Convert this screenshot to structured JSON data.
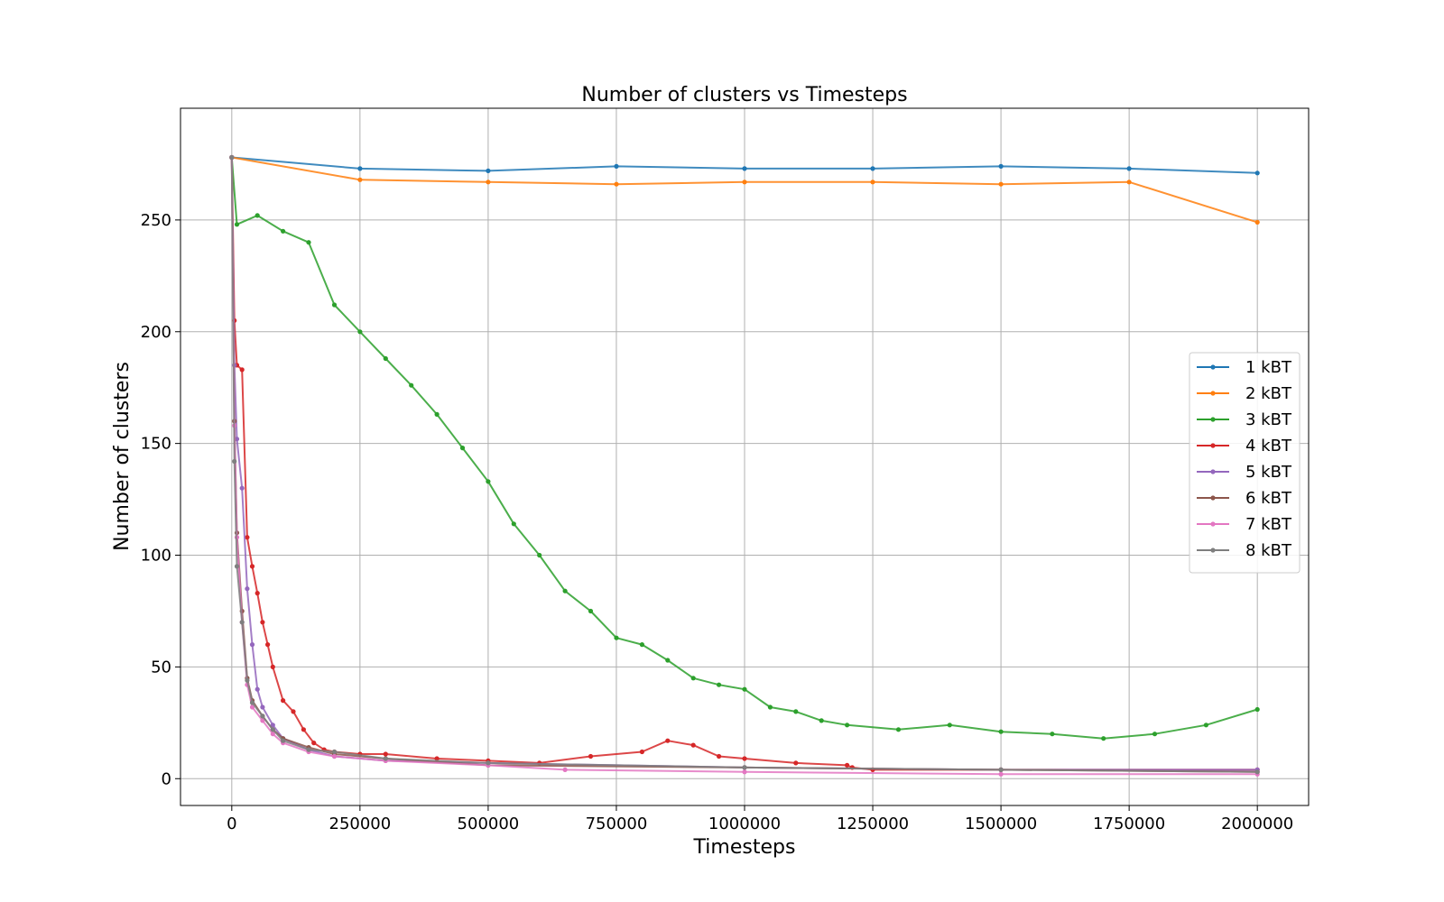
{
  "chart_data": {
    "type": "line",
    "title": "Number of clusters vs Timesteps",
    "xlabel": "Timesteps",
    "ylabel": "Number of clusters",
    "xlim": [
      -100000,
      2100000
    ],
    "ylim": [
      -12,
      300
    ],
    "xticks": [
      0,
      250000,
      500000,
      750000,
      1000000,
      1250000,
      1500000,
      1750000,
      2000000
    ],
    "yticks": [
      0,
      50,
      100,
      150,
      200,
      250
    ],
    "grid": true,
    "legend_position": "center-right",
    "series": [
      {
        "name": "1 kBT",
        "color": "#1f77b4",
        "x": [
          0,
          250000,
          500000,
          750000,
          1000000,
          1250000,
          1500000,
          1750000,
          2000000
        ],
        "y": [
          278,
          273,
          272,
          274,
          273,
          273,
          274,
          273,
          271
        ]
      },
      {
        "name": "2 kBT",
        "color": "#ff7f0e",
        "x": [
          0,
          250000,
          500000,
          750000,
          1000000,
          1250000,
          1500000,
          1750000,
          2000000
        ],
        "y": [
          278,
          268,
          267,
          266,
          267,
          267,
          266,
          267,
          249
        ]
      },
      {
        "name": "3 kBT",
        "color": "#2ca02c",
        "x": [
          0,
          10000,
          50000,
          100000,
          150000,
          200000,
          250000,
          300000,
          350000,
          400000,
          450000,
          500000,
          550000,
          600000,
          650000,
          700000,
          750000,
          800000,
          850000,
          900000,
          950000,
          1000000,
          1050000,
          1100000,
          1150000,
          1200000,
          1300000,
          1400000,
          1500000,
          1600000,
          1700000,
          1800000,
          1900000,
          2000000
        ],
        "y": [
          278,
          248,
          252,
          245,
          240,
          212,
          200,
          188,
          176,
          163,
          148,
          133,
          114,
          100,
          84,
          75,
          63,
          60,
          53,
          45,
          42,
          40,
          32,
          30,
          26,
          24,
          22,
          24,
          21,
          20,
          18,
          20,
          24,
          31
        ]
      },
      {
        "name": "4 kBT",
        "color": "#d62728",
        "x": [
          0,
          5000,
          10000,
          20000,
          30000,
          40000,
          50000,
          60000,
          70000,
          80000,
          100000,
          120000,
          140000,
          160000,
          180000,
          200000,
          250000,
          300000,
          400000,
          500000,
          600000,
          700000,
          800000,
          850000,
          900000,
          950000,
          1000000,
          1100000,
          1200000,
          1210000,
          1250000,
          1500000,
          2000000
        ],
        "y": [
          278,
          205,
          185,
          183,
          108,
          95,
          83,
          70,
          60,
          50,
          35,
          30,
          22,
          16,
          13,
          12,
          11,
          11,
          9,
          8,
          7,
          10,
          12,
          17,
          15,
          10,
          9,
          7,
          6,
          5,
          4,
          4,
          4
        ]
      },
      {
        "name": "5 kBT",
        "color": "#9467bd",
        "x": [
          0,
          5000,
          10000,
          20000,
          30000,
          40000,
          50000,
          60000,
          80000,
          100000,
          150000,
          200000,
          300000,
          500000,
          1000000,
          1500000,
          2000000
        ],
        "y": [
          278,
          185,
          152,
          130,
          85,
          60,
          40,
          32,
          24,
          18,
          13,
          10,
          8,
          7,
          5,
          4,
          4
        ]
      },
      {
        "name": "6 kBT",
        "color": "#8c564b",
        "x": [
          0,
          5000,
          10000,
          20000,
          30000,
          40000,
          60000,
          80000,
          100000,
          150000,
          200000,
          300000,
          500000,
          1000000,
          1500000,
          2000000
        ],
        "y": [
          278,
          160,
          110,
          75,
          45,
          35,
          28,
          22,
          18,
          14,
          11,
          9,
          6,
          5,
          4,
          3
        ]
      },
      {
        "name": "7 kBT",
        "color": "#e377c2",
        "x": [
          0,
          5000,
          10000,
          20000,
          30000,
          40000,
          60000,
          80000,
          100000,
          150000,
          200000,
          300000,
          500000,
          650000,
          1000000,
          1500000,
          2000000
        ],
        "y": [
          278,
          158,
          108,
          70,
          42,
          32,
          26,
          20,
          16,
          12,
          10,
          8,
          6,
          4,
          3,
          2,
          2
        ]
      },
      {
        "name": "8 kBT",
        "color": "#7f7f7f",
        "x": [
          0,
          5000,
          10000,
          20000,
          30000,
          40000,
          60000,
          80000,
          100000,
          150000,
          200000,
          300000,
          500000,
          1000000,
          1500000,
          2000000
        ],
        "y": [
          278,
          142,
          95,
          70,
          44,
          34,
          28,
          22,
          17,
          13,
          12,
          9,
          7,
          5,
          4,
          3
        ]
      }
    ]
  }
}
